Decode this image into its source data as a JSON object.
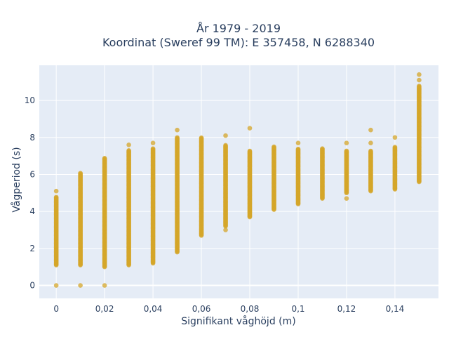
{
  "chart_data": {
    "type": "scatter",
    "title_line1": "År 1979 - 2019",
    "title_line2": "Koordinat (Sweref 99 TM): E 357458, N 6288340",
    "xlabel": "Signifikant våghöjd (m)",
    "ylabel": "Vågperiod (s)",
    "xlim": [
      -0.007,
      0.158
    ],
    "ylim": [
      -0.7,
      11.9
    ],
    "x_ticks": [
      0,
      0.02,
      0.04,
      0.06,
      0.08,
      0.1,
      0.12,
      0.14
    ],
    "x_tick_labels": [
      "0",
      "0,02",
      "0,04",
      "0,06",
      "0,08",
      "0,1",
      "0,12",
      "0,14"
    ],
    "y_ticks": [
      0,
      2,
      4,
      6,
      8,
      10
    ],
    "y_tick_labels": [
      "0",
      "2",
      "4",
      "6",
      "8",
      "10"
    ],
    "grid": true,
    "marker_color": "#d4a62a",
    "plot_bg": "#e5ecf6",
    "columns": [
      {
        "x": 0.0,
        "y_min": 1.1,
        "y_max": 4.8,
        "outliers": [
          5.1,
          0
        ]
      },
      {
        "x": 0.01,
        "y_min": 1.1,
        "y_max": 6.1,
        "outliers": [
          0
        ]
      },
      {
        "x": 0.02,
        "y_min": 1.0,
        "y_max": 6.9,
        "outliers": [
          0
        ]
      },
      {
        "x": 0.03,
        "y_min": 1.1,
        "y_max": 7.3,
        "outliers": [
          7.6
        ]
      },
      {
        "x": 0.04,
        "y_min": 1.2,
        "y_max": 7.4,
        "outliers": [
          7.7
        ]
      },
      {
        "x": 0.05,
        "y_min": 1.8,
        "y_max": 8.0,
        "outliers": [
          8.4
        ]
      },
      {
        "x": 0.06,
        "y_min": 2.7,
        "y_max": 8.0,
        "outliers": []
      },
      {
        "x": 0.07,
        "y_min": 3.2,
        "y_max": 7.6,
        "outliers": [
          3.0,
          8.1
        ]
      },
      {
        "x": 0.08,
        "y_min": 3.7,
        "y_max": 7.3,
        "outliers": [
          8.5
        ]
      },
      {
        "x": 0.09,
        "y_min": 4.1,
        "y_max": 7.5,
        "outliers": []
      },
      {
        "x": 0.1,
        "y_min": 4.4,
        "y_max": 7.4,
        "outliers": [
          7.7
        ]
      },
      {
        "x": 0.11,
        "y_min": 4.7,
        "y_max": 7.4,
        "outliers": []
      },
      {
        "x": 0.12,
        "y_min": 5.0,
        "y_max": 7.3,
        "outliers": [
          4.7,
          7.7
        ]
      },
      {
        "x": 0.13,
        "y_min": 5.1,
        "y_max": 7.3,
        "outliers": [
          7.7,
          8.4
        ]
      },
      {
        "x": 0.14,
        "y_min": 5.2,
        "y_max": 7.5,
        "outliers": [
          8.0
        ]
      },
      {
        "x": 0.15,
        "y_min": 5.6,
        "y_max": 10.8,
        "outliers": [
          11.1,
          11.4
        ]
      }
    ]
  }
}
